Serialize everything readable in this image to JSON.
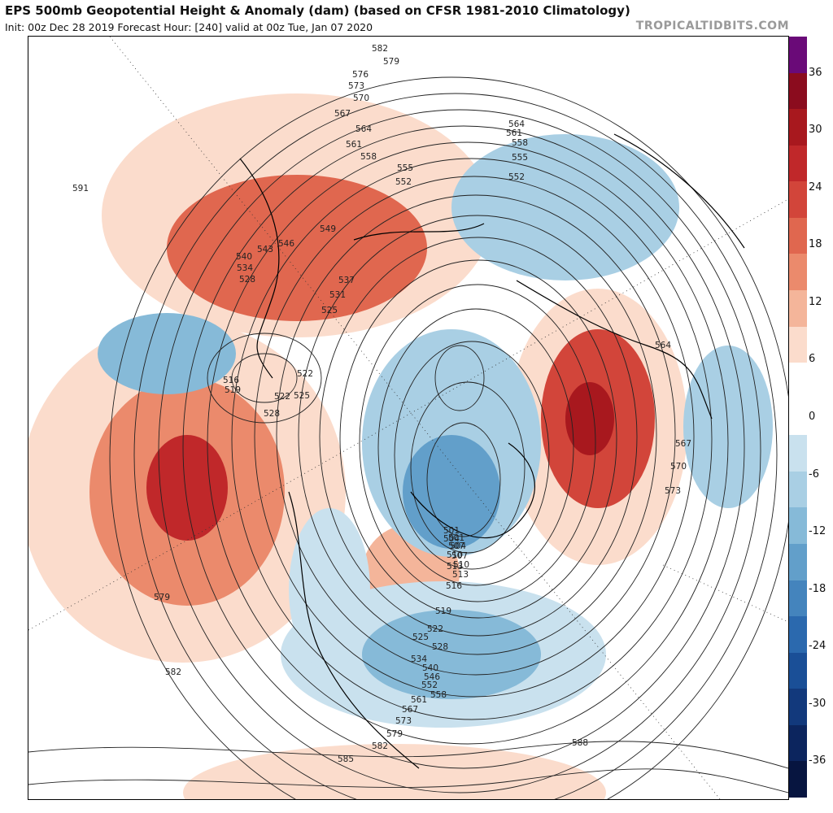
{
  "header": {
    "title": "EPS 500mb Geopotential Height & Anomaly (dam) (based on CFSR 1981-2010 Climatology)",
    "subtitle": "Init: 00z Dec 28 2019   Forecast Hour: [240]   valid at 00z Tue, Jan 07 2020",
    "brand": "TROPICALTIDBITS.COM"
  },
  "colorbar": {
    "ticks": [
      "36",
      "30",
      "24",
      "18",
      "12",
      "6",
      "0",
      "-6",
      "-12",
      "-18",
      "-24",
      "-30",
      "-36"
    ],
    "colors": [
      "#6a0a78",
      "#8b0c1e",
      "#a8181e",
      "#c0282a",
      "#d2453a",
      "#e0674f",
      "#eb8a6c",
      "#f4b59a",
      "#fbdccc",
      "#ffffff",
      "#ffffff",
      "#c9e1ee",
      "#a9cfe4",
      "#86bad8",
      "#629fca",
      "#4484bd",
      "#2b69ae",
      "#1a4f97",
      "#12397c",
      "#0c255e",
      "#071540"
    ]
  },
  "map": {
    "contour_labels": [
      "591",
      "582",
      "579",
      "576",
      "573",
      "570",
      "567",
      "564",
      "561",
      "558",
      "555",
      "552",
      "549",
      "546",
      "543",
      "540",
      "537",
      "534",
      "531",
      "528",
      "525",
      "522",
      "519",
      "516",
      "513",
      "510",
      "507",
      "504",
      "501",
      "564",
      "561",
      "558",
      "555",
      "552",
      "564",
      "567",
      "570",
      "573",
      "579",
      "582",
      "585",
      "588",
      "579",
      "582",
      "573",
      "567",
      "561",
      "558",
      "552",
      "546",
      "540",
      "534",
      "528",
      "525",
      "522",
      "519",
      "516",
      "513",
      "510",
      "507",
      "504",
      "501",
      "522",
      "525",
      "528"
    ]
  }
}
